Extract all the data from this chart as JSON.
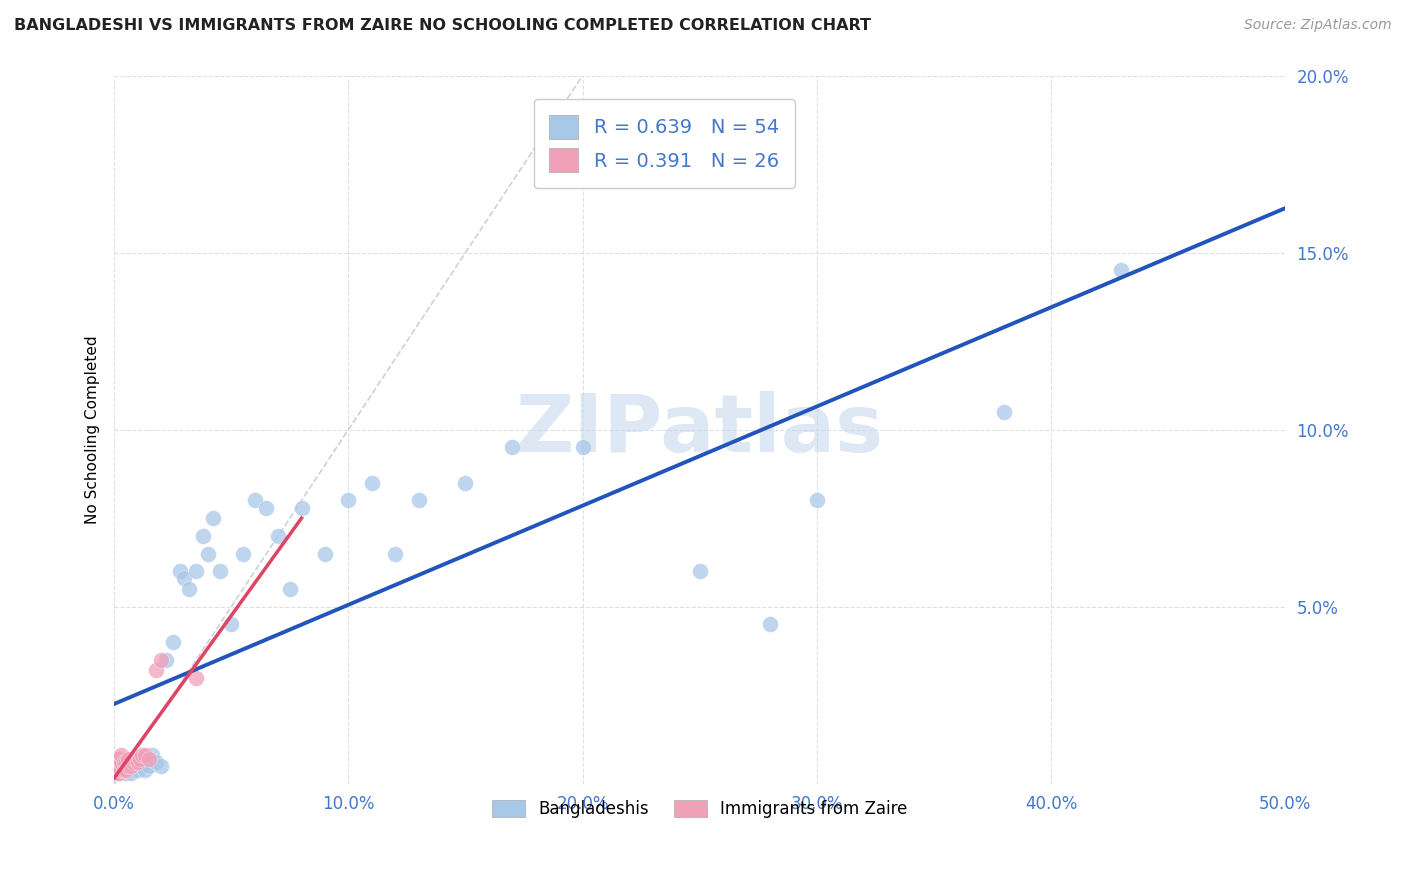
{
  "title": "BANGLADESHI VS IMMIGRANTS FROM ZAIRE NO SCHOOLING COMPLETED CORRELATION CHART",
  "source": "Source: ZipAtlas.com",
  "ylabel": "No Schooling Completed",
  "xlim": [
    0.0,
    0.5
  ],
  "ylim": [
    0.0,
    0.2
  ],
  "xticks": [
    0.0,
    0.1,
    0.2,
    0.3,
    0.4,
    0.5
  ],
  "yticks": [
    0.0,
    0.05,
    0.1,
    0.15,
    0.2
  ],
  "xticklabels": [
    "0.0%",
    "10.0%",
    "20.0%",
    "30.0%",
    "40.0%",
    "50.0%"
  ],
  "yticklabels_right": [
    "",
    "5.0%",
    "10.0%",
    "15.0%",
    "20.0%"
  ],
  "background_color": "#ffffff",
  "grid_color": "#dddddd",
  "diagonal_color": "#cccccc",
  "legend_R1": "0.639",
  "legend_N1": "54",
  "legend_R2": "0.391",
  "legend_N2": "26",
  "blue_color": "#a8c8e8",
  "pink_color": "#f0a0b8",
  "blue_line_color": "#2255bb",
  "pink_line_color": "#dd4466",
  "watermark": "ZIPatlas",
  "bang_x": [
    0.001,
    0.001,
    0.002,
    0.002,
    0.003,
    0.003,
    0.004,
    0.004,
    0.005,
    0.005,
    0.006,
    0.006,
    0.007,
    0.007,
    0.008,
    0.009,
    0.01,
    0.011,
    0.012,
    0.013,
    0.015,
    0.016,
    0.018,
    0.02,
    0.022,
    0.025,
    0.028,
    0.03,
    0.032,
    0.035,
    0.038,
    0.04,
    0.042,
    0.045,
    0.05,
    0.055,
    0.06,
    0.065,
    0.07,
    0.075,
    0.08,
    0.09,
    0.1,
    0.11,
    0.12,
    0.13,
    0.15,
    0.17,
    0.2,
    0.25,
    0.28,
    0.3,
    0.38,
    0.43
  ],
  "bang_y": [
    0.003,
    0.005,
    0.004,
    0.006,
    0.003,
    0.007,
    0.004,
    0.006,
    0.003,
    0.005,
    0.004,
    0.006,
    0.003,
    0.005,
    0.004,
    0.005,
    0.004,
    0.006,
    0.005,
    0.004,
    0.005,
    0.008,
    0.006,
    0.005,
    0.035,
    0.04,
    0.06,
    0.058,
    0.055,
    0.06,
    0.07,
    0.065,
    0.075,
    0.06,
    0.045,
    0.065,
    0.08,
    0.078,
    0.07,
    0.055,
    0.078,
    0.065,
    0.08,
    0.085,
    0.065,
    0.08,
    0.085,
    0.095,
    0.095,
    0.06,
    0.045,
    0.08,
    0.105,
    0.145
  ],
  "zaire_x": [
    0.001,
    0.001,
    0.001,
    0.002,
    0.002,
    0.002,
    0.003,
    0.003,
    0.003,
    0.004,
    0.004,
    0.005,
    0.005,
    0.006,
    0.006,
    0.007,
    0.008,
    0.009,
    0.01,
    0.011,
    0.012,
    0.013,
    0.015,
    0.018,
    0.02,
    0.035
  ],
  "zaire_y": [
    0.003,
    0.005,
    0.007,
    0.003,
    0.005,
    0.007,
    0.004,
    0.006,
    0.008,
    0.004,
    0.006,
    0.004,
    0.006,
    0.005,
    0.007,
    0.005,
    0.006,
    0.007,
    0.006,
    0.007,
    0.008,
    0.008,
    0.007,
    0.032,
    0.035,
    0.03
  ]
}
